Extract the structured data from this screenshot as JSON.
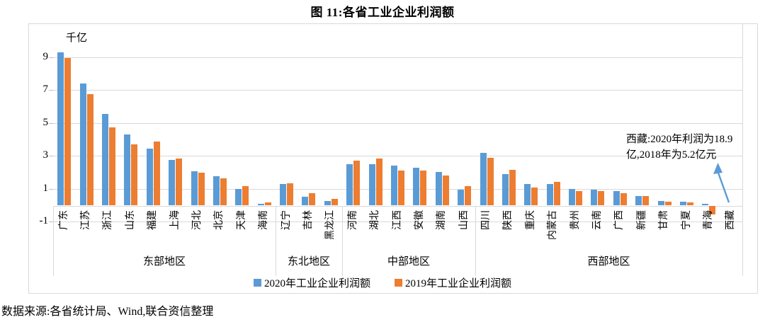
{
  "title": "图 11:各省工业企业利润额",
  "source_note": "数据来源:各省统计局、Wind,联合资信整理",
  "annotation": {
    "line1": "西藏:2020年利润为18.9",
    "line2": "亿,2018年为5.2亿元"
  },
  "chart_data": {
    "type": "bar",
    "title": "图 11:各省工业企业利润额",
    "ylabel": "千亿",
    "ylim": [
      -1,
      10
    ],
    "y_ticks": [
      9,
      7,
      5,
      3,
      1,
      -1
    ],
    "grid": true,
    "legend_position": "bottom",
    "categories": [
      "广东",
      "江苏",
      "浙江",
      "山东",
      "福建",
      "上海",
      "河北",
      "北京",
      "天津",
      "海南",
      "辽宁",
      "吉林",
      "黑龙江",
      "河南",
      "湖北",
      "江西",
      "安徽",
      "湖南",
      "山西",
      "四川",
      "陕西",
      "重庆",
      "内蒙古",
      "贵州",
      "云南",
      "广西",
      "新疆",
      "甘肃",
      "宁夏",
      "青海",
      "西藏"
    ],
    "groups": [
      {
        "label": "东部地区",
        "count": 10
      },
      {
        "label": "东北地区",
        "count": 3
      },
      {
        "label": "中部地区",
        "count": 6
      },
      {
        "label": "西部地区",
        "count": 12
      }
    ],
    "series": [
      {
        "name": "2020年工业企业利润额",
        "color": "#5b9bd5",
        "values": [
          9.3,
          7.4,
          5.55,
          4.3,
          3.45,
          2.75,
          2.05,
          1.76,
          0.97,
          0.1,
          1.3,
          0.5,
          0.26,
          2.51,
          2.48,
          2.41,
          2.27,
          2.01,
          0.94,
          3.19,
          1.91,
          1.31,
          1.29,
          0.98,
          0.96,
          0.85,
          0.56,
          0.25,
          0.22,
          0.08,
          0.02
        ]
      },
      {
        "name": "2019年工业企业利润额",
        "color": "#ed7d31",
        "values": [
          8.95,
          6.75,
          4.75,
          3.7,
          3.85,
          2.85,
          1.98,
          1.65,
          1.17,
          0.17,
          1.34,
          0.72,
          0.4,
          2.73,
          2.84,
          2.12,
          2.12,
          1.82,
          1.17,
          2.87,
          2.15,
          1.08,
          1.43,
          0.84,
          0.86,
          0.72,
          0.54,
          0.22,
          0.18,
          -0.5,
          0.01
        ]
      }
    ],
    "annotation_text": "西藏:2020年利润为18.9亿,2018年为5.2亿元",
    "colors": {
      "grid": "#d9d9d9",
      "frame": "#d9d9d9",
      "arrow": "#5b9bd5",
      "text": "#000000"
    }
  }
}
